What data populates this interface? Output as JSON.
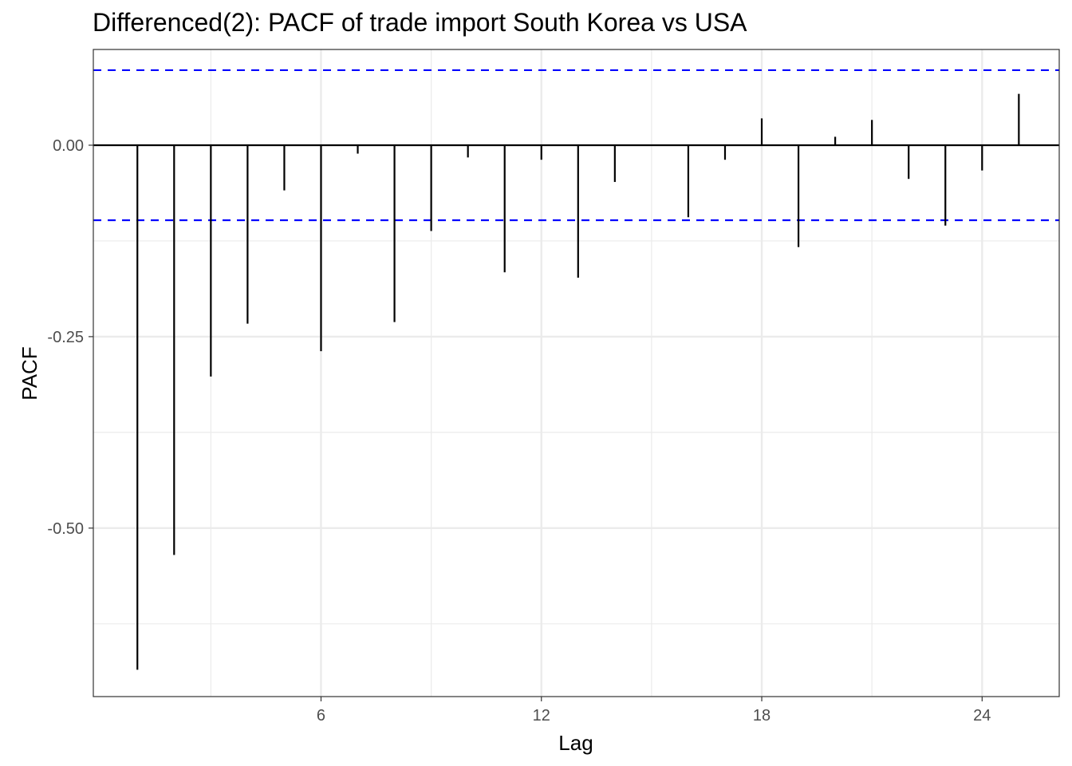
{
  "chart_data": {
    "type": "bar",
    "title": "Differenced(2): PACF of trade import South Korea vs USA",
    "xlabel": "Lag",
    "ylabel": "PACF",
    "x": [
      1,
      2,
      3,
      4,
      5,
      6,
      7,
      8,
      9,
      10,
      11,
      12,
      13,
      14,
      15,
      16,
      17,
      18,
      19,
      20,
      21,
      22,
      23,
      24,
      25
    ],
    "values": [
      -0.685,
      -0.535,
      -0.302,
      -0.233,
      -0.059,
      -0.269,
      -0.011,
      -0.231,
      -0.112,
      -0.016,
      -0.166,
      -0.019,
      -0.173,
      -0.048,
      0.0,
      -0.094,
      -0.019,
      0.035,
      -0.133,
      0.011,
      0.033,
      -0.044,
      -0.105,
      -0.033,
      0.067
    ],
    "confidence_bounds": [
      0.098,
      -0.098
    ],
    "xlim": [
      -0.2,
      26.1
    ],
    "ylim": [
      -0.72,
      0.125
    ],
    "x_ticks": [
      6,
      12,
      18,
      24
    ],
    "x_tick_labels": [
      "6",
      "12",
      "18",
      "24"
    ],
    "y_ticks": [
      0.0,
      -0.25,
      -0.5
    ],
    "y_tick_labels": [
      "0.00",
      "-0.25",
      "-0.50"
    ],
    "grid": true,
    "colors": {
      "bars": "#000000",
      "bounds": "#0000ff",
      "grid_major": "#ebebeb",
      "panel_border": "#333333"
    }
  }
}
